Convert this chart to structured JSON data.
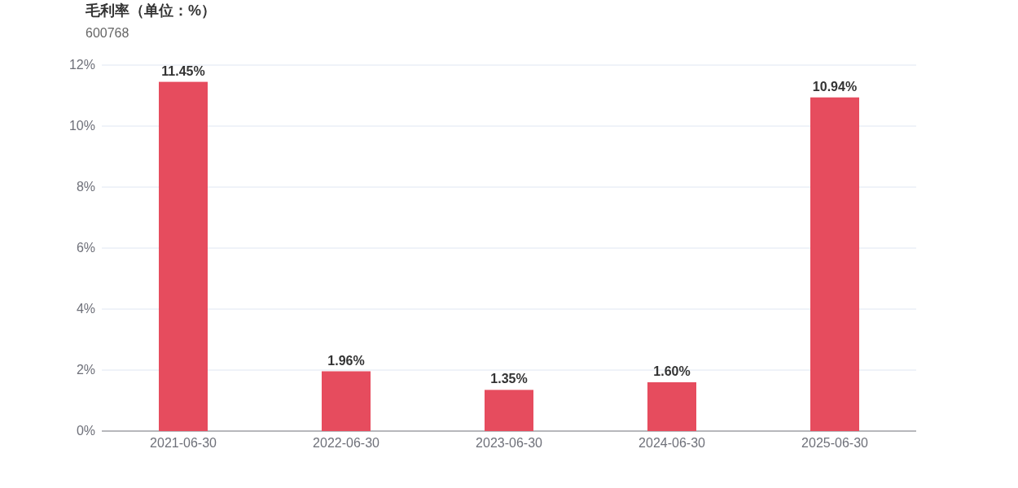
{
  "chart_data": {
    "type": "bar",
    "title": "毛利率（单位：%）",
    "subtitle": "600768",
    "categories": [
      "2021-06-30",
      "2022-06-30",
      "2023-06-30",
      "2024-06-30",
      "2025-06-30"
    ],
    "values": [
      11.45,
      1.96,
      1.35,
      1.6,
      10.94
    ],
    "value_labels": [
      "11.45%",
      "1.96%",
      "1.35%",
      "1.60%",
      "10.94%"
    ],
    "color": "#e64c5e",
    "ylim": [
      0,
      12
    ],
    "yticks": [
      {
        "value": 0,
        "label": "0%"
      },
      {
        "value": 2,
        "label": "2%"
      },
      {
        "value": 4,
        "label": "4%"
      },
      {
        "value": 6,
        "label": "6%"
      },
      {
        "value": 8,
        "label": "8%"
      },
      {
        "value": 10,
        "label": "10%"
      },
      {
        "value": 12,
        "label": "12%"
      }
    ],
    "grid": "y"
  }
}
